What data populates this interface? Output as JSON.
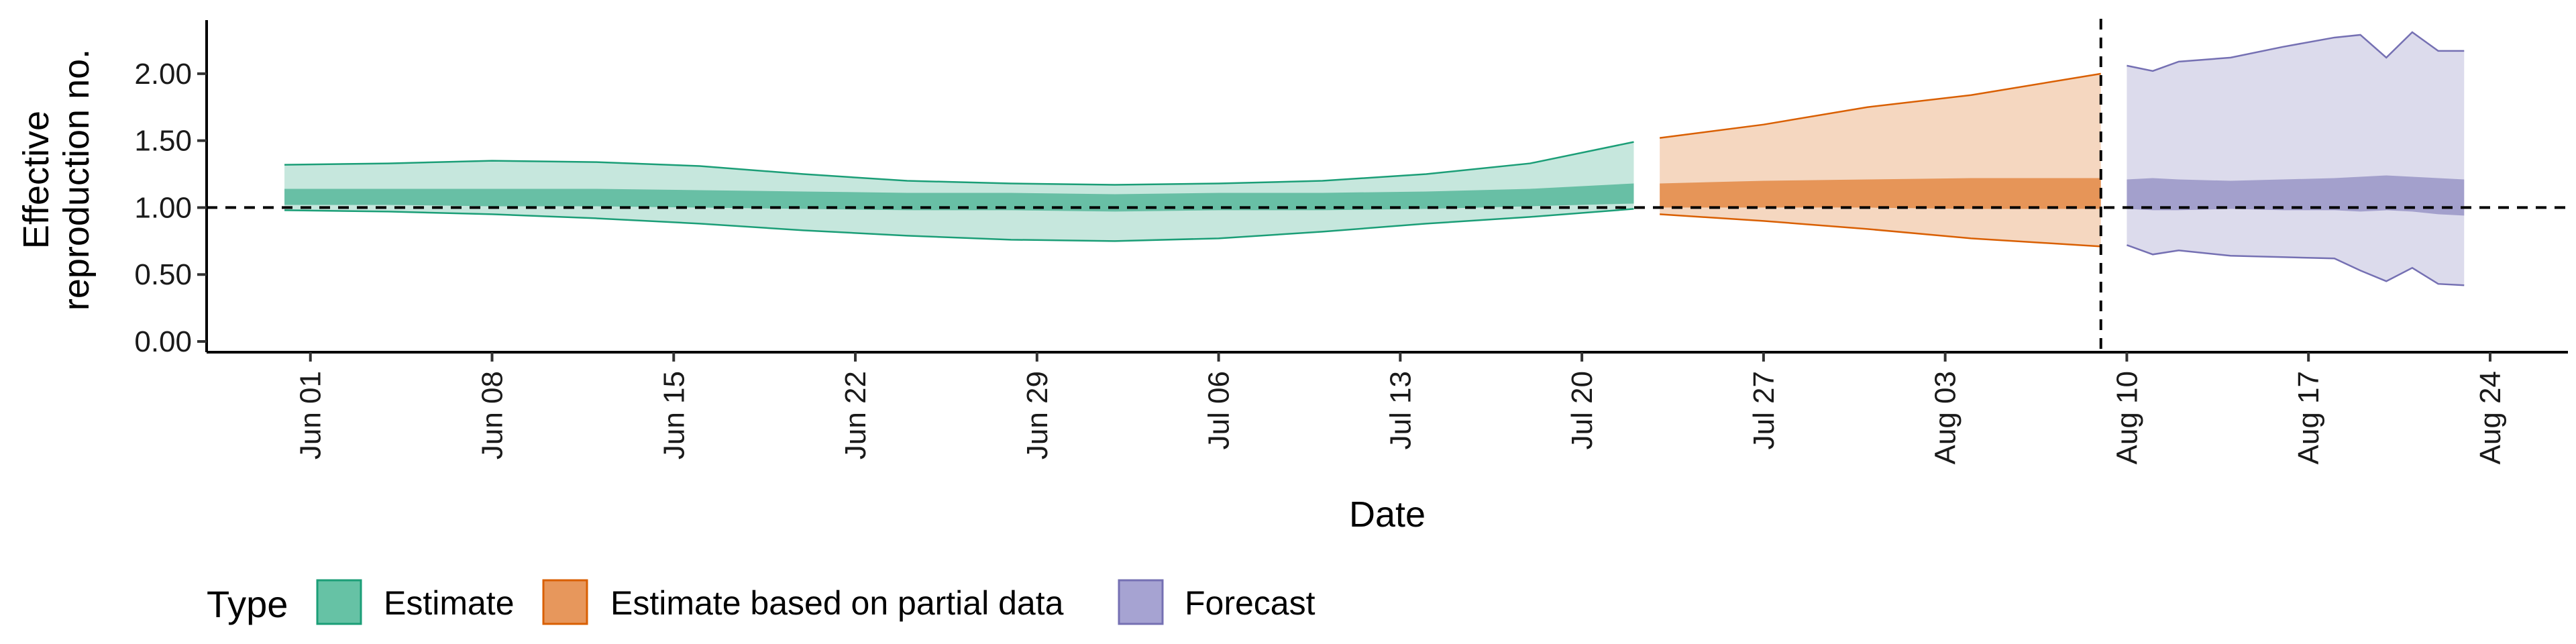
{
  "chart_data": {
    "type": "area",
    "title": "",
    "xlabel": "Date",
    "ylabel": "Effective reproduction no.",
    "ylabel_lines": [
      "Effective",
      "reproduction no."
    ],
    "ylim": [
      -0.08,
      2.4
    ],
    "y_ticks": [
      0.0,
      0.5,
      1.0,
      1.5,
      2.0
    ],
    "y_tick_labels": [
      "0.00",
      "0.50",
      "1.00",
      "1.50",
      "2.00"
    ],
    "x_range": [
      "2020-05-28",
      "2020-08-27"
    ],
    "x_ticks": [
      "2020-06-01",
      "2020-06-08",
      "2020-06-15",
      "2020-06-22",
      "2020-06-29",
      "2020-07-06",
      "2020-07-13",
      "2020-07-20",
      "2020-07-27",
      "2020-08-03",
      "2020-08-10",
      "2020-08-17",
      "2020-08-24"
    ],
    "x_tick_labels": [
      "Jun 01",
      "Jun 08",
      "Jun 15",
      "Jun 22",
      "Jun 29",
      "Jul 06",
      "Jul 13",
      "Jul 20",
      "Jul 27",
      "Aug 03",
      "Aug 10",
      "Aug 17",
      "Aug 24"
    ],
    "hline": 1.0,
    "vline": "2020-08-09",
    "grid": false,
    "legend": {
      "title": "Type",
      "position": "bottom-left",
      "entries": [
        {
          "label": "Estimate",
          "fill": "#66C2A5",
          "stroke": "#1B9E77"
        },
        {
          "label": "Estimate based on partial data",
          "fill": "#E7975C",
          "stroke": "#D95F02"
        },
        {
          "label": "Forecast",
          "fill": "#A6A3D2",
          "stroke": "#7570B3"
        }
      ]
    },
    "series": [
      {
        "name": "Estimate",
        "color": "#1B9E77",
        "x": [
          "2020-05-31",
          "2020-06-04",
          "2020-06-08",
          "2020-06-12",
          "2020-06-16",
          "2020-06-20",
          "2020-06-24",
          "2020-06-28",
          "2020-07-02",
          "2020-07-06",
          "2020-07-10",
          "2020-07-14",
          "2020-07-18",
          "2020-07-22"
        ],
        "outer_upper": [
          1.32,
          1.33,
          1.35,
          1.34,
          1.31,
          1.25,
          1.2,
          1.18,
          1.17,
          1.18,
          1.2,
          1.25,
          1.33,
          1.49
        ],
        "inner_upper": [
          1.14,
          1.14,
          1.14,
          1.14,
          1.13,
          1.12,
          1.11,
          1.11,
          1.1,
          1.11,
          1.11,
          1.12,
          1.14,
          1.18
        ],
        "inner_lower": [
          1.02,
          1.02,
          1.01,
          1.01,
          1.0,
          0.99,
          0.98,
          0.98,
          0.97,
          0.98,
          0.98,
          0.99,
          1.01,
          1.03
        ],
        "outer_lower": [
          0.98,
          0.97,
          0.95,
          0.92,
          0.88,
          0.83,
          0.79,
          0.76,
          0.75,
          0.77,
          0.82,
          0.88,
          0.93,
          0.99
        ]
      },
      {
        "name": "Estimate based on partial data",
        "color": "#D95F02",
        "x": [
          "2020-07-23",
          "2020-07-27",
          "2020-07-31",
          "2020-08-04",
          "2020-08-09"
        ],
        "outer_upper": [
          1.52,
          1.62,
          1.75,
          1.84,
          2.0
        ],
        "inner_upper": [
          1.18,
          1.2,
          1.21,
          1.22,
          1.22
        ],
        "inner_lower": [
          1.0,
          1.0,
          1.0,
          0.99,
          0.99
        ],
        "outer_lower": [
          0.95,
          0.9,
          0.84,
          0.77,
          0.71
        ]
      },
      {
        "name": "Forecast",
        "color": "#7570B3",
        "x": [
          "2020-08-10",
          "2020-08-11",
          "2020-08-12",
          "2020-08-14",
          "2020-08-16",
          "2020-08-18",
          "2020-08-19",
          "2020-08-20",
          "2020-08-21",
          "2020-08-22",
          "2020-08-23"
        ],
        "outer_upper": [
          2.06,
          2.02,
          2.09,
          2.12,
          2.2,
          2.27,
          2.29,
          2.12,
          2.31,
          2.17,
          2.17
        ],
        "inner_upper": [
          1.21,
          1.22,
          1.21,
          1.2,
          1.21,
          1.22,
          1.23,
          1.24,
          1.23,
          1.22,
          1.21
        ],
        "inner_lower": [
          0.99,
          0.98,
          0.98,
          0.99,
          0.98,
          0.98,
          0.97,
          0.98,
          0.97,
          0.95,
          0.94
        ],
        "outer_lower": [
          0.72,
          0.65,
          0.68,
          0.64,
          0.63,
          0.62,
          0.53,
          0.45,
          0.55,
          0.43,
          0.42
        ]
      }
    ]
  }
}
